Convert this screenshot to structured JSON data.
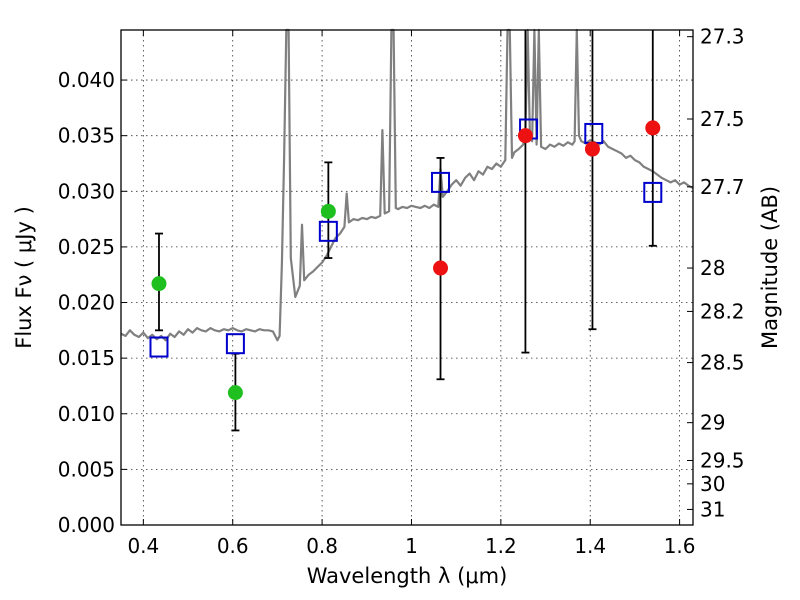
{
  "chart_data": {
    "type": "scatter",
    "xlabel": "Wavelength  λ (μm)",
    "ylabel": "Flux  Fν  ( μJy )",
    "y2label": "Magnitude (AB)",
    "xlim": [
      0.35,
      1.63
    ],
    "ylim": [
      0.0,
      0.0445
    ],
    "x_ticks": [
      0.4,
      0.6,
      0.8,
      1.0,
      1.2,
      1.4,
      1.6
    ],
    "x_tick_labels": [
      "0.4",
      "0.6",
      "0.8",
      "1",
      "1.2",
      "1.4",
      "1.6"
    ],
    "y_ticks": [
      0.0,
      0.005,
      0.01,
      0.015,
      0.02,
      0.025,
      0.03,
      0.035,
      0.04
    ],
    "y_tick_labels": [
      "0.000",
      "0.005",
      "0.010",
      "0.015",
      "0.020",
      "0.025",
      "0.030",
      "0.035",
      "0.040"
    ],
    "y2_ticks": [
      {
        "label": "27.3",
        "flux": 0.0439
      },
      {
        "label": "27.5",
        "flux": 0.0365
      },
      {
        "label": "27.7",
        "flux": 0.0304
      },
      {
        "label": "28",
        "flux": 0.0231
      },
      {
        "label": "28.2",
        "flux": 0.0192
      },
      {
        "label": "28.5",
        "flux": 0.0146
      },
      {
        "label": "29",
        "flux": 0.0092
      },
      {
        "label": "29.5",
        "flux": 0.0058
      },
      {
        "label": "30",
        "flux": 0.0037
      },
      {
        "label": "31",
        "flux": 0.0014
      }
    ],
    "grid": true,
    "colors": {
      "spectrum": "#808080",
      "green_points": "#1fbf1f",
      "red_points": "#ee1111",
      "model_boxes": "#0000cc",
      "error_bars": "#000000"
    },
    "series": [
      {
        "kind": "line",
        "points": [
          [
            0.35,
            0.0172
          ],
          [
            0.36,
            0.017
          ],
          [
            0.37,
            0.0175
          ],
          [
            0.38,
            0.0171
          ],
          [
            0.39,
            0.0169
          ],
          [
            0.4,
            0.0173
          ],
          [
            0.41,
            0.0168
          ],
          [
            0.42,
            0.0171
          ],
          [
            0.43,
            0.0167
          ],
          [
            0.44,
            0.017
          ],
          [
            0.45,
            0.0166
          ],
          [
            0.46,
            0.0172
          ],
          [
            0.47,
            0.0169
          ],
          [
            0.48,
            0.0174
          ],
          [
            0.49,
            0.0171
          ],
          [
            0.5,
            0.0176
          ],
          [
            0.51,
            0.0173
          ],
          [
            0.52,
            0.0177
          ],
          [
            0.53,
            0.0175
          ],
          [
            0.54,
            0.0174
          ],
          [
            0.55,
            0.0177
          ],
          [
            0.56,
            0.0175
          ],
          [
            0.57,
            0.0174
          ],
          [
            0.58,
            0.0176
          ],
          [
            0.59,
            0.0175
          ],
          [
            0.6,
            0.0177
          ],
          [
            0.61,
            0.0175
          ],
          [
            0.62,
            0.0174
          ],
          [
            0.63,
            0.0176
          ],
          [
            0.64,
            0.0175
          ],
          [
            0.65,
            0.0174
          ],
          [
            0.66,
            0.0176
          ],
          [
            0.67,
            0.0175
          ],
          [
            0.68,
            0.0175
          ],
          [
            0.69,
            0.0174
          ],
          [
            0.7,
            0.0166
          ],
          [
            0.705,
            0.017
          ],
          [
            0.71,
            0.0235
          ],
          [
            0.715,
            0.033
          ],
          [
            0.72,
            0.0445
          ],
          [
            0.725,
            0.0445
          ],
          [
            0.73,
            0.024
          ],
          [
            0.74,
            0.0205
          ],
          [
            0.75,
            0.0215
          ],
          [
            0.755,
            0.027
          ],
          [
            0.76,
            0.022
          ],
          [
            0.77,
            0.0225
          ],
          [
            0.78,
            0.0228
          ],
          [
            0.79,
            0.0232
          ],
          [
            0.8,
            0.0236
          ],
          [
            0.81,
            0.0242
          ],
          [
            0.82,
            0.025
          ],
          [
            0.83,
            0.0258
          ],
          [
            0.84,
            0.0262
          ],
          [
            0.85,
            0.0268
          ],
          [
            0.855,
            0.0298
          ],
          [
            0.86,
            0.0272
          ],
          [
            0.87,
            0.0275
          ],
          [
            0.88,
            0.0274
          ],
          [
            0.89,
            0.0276
          ],
          [
            0.9,
            0.0275
          ],
          [
            0.91,
            0.0277
          ],
          [
            0.92,
            0.0276
          ],
          [
            0.93,
            0.0278
          ],
          [
            0.935,
            0.0355
          ],
          [
            0.94,
            0.028
          ],
          [
            0.95,
            0.0282
          ],
          [
            0.955,
            0.0445
          ],
          [
            0.96,
            0.0445
          ],
          [
            0.965,
            0.0285
          ],
          [
            0.97,
            0.0284
          ],
          [
            0.98,
            0.0286
          ],
          [
            0.99,
            0.0285
          ],
          [
            1.0,
            0.0287
          ],
          [
            1.01,
            0.0286
          ],
          [
            1.02,
            0.0285
          ],
          [
            1.03,
            0.0287
          ],
          [
            1.04,
            0.0285
          ],
          [
            1.05,
            0.0288
          ],
          [
            1.06,
            0.0286
          ],
          [
            1.065,
            0.032
          ],
          [
            1.07,
            0.0295
          ],
          [
            1.08,
            0.03
          ],
          [
            1.09,
            0.0306
          ],
          [
            1.1,
            0.031
          ],
          [
            1.11,
            0.0305
          ],
          [
            1.12,
            0.0312
          ],
          [
            1.13,
            0.0316
          ],
          [
            1.14,
            0.031
          ],
          [
            1.15,
            0.0318
          ],
          [
            1.16,
            0.0315
          ],
          [
            1.17,
            0.0322
          ],
          [
            1.18,
            0.032
          ],
          [
            1.19,
            0.0325
          ],
          [
            1.2,
            0.0322
          ],
          [
            1.21,
            0.0328
          ],
          [
            1.215,
            0.0445
          ],
          [
            1.22,
            0.0445
          ],
          [
            1.225,
            0.033
          ],
          [
            1.23,
            0.0335
          ],
          [
            1.24,
            0.0338
          ],
          [
            1.25,
            0.0342
          ],
          [
            1.255,
            0.0352
          ],
          [
            1.26,
            0.0445
          ],
          [
            1.265,
            0.035
          ],
          [
            1.27,
            0.0345
          ],
          [
            1.275,
            0.0445
          ],
          [
            1.28,
            0.0342
          ],
          [
            1.285,
            0.0445
          ],
          [
            1.29,
            0.034
          ],
          [
            1.3,
            0.0338
          ],
          [
            1.31,
            0.0342
          ],
          [
            1.32,
            0.034
          ],
          [
            1.33,
            0.0343
          ],
          [
            1.34,
            0.0341
          ],
          [
            1.35,
            0.0344
          ],
          [
            1.36,
            0.0342
          ],
          [
            1.365,
            0.0345
          ],
          [
            1.37,
            0.0445
          ],
          [
            1.375,
            0.035
          ],
          [
            1.38,
            0.0345
          ],
          [
            1.39,
            0.0343
          ],
          [
            1.4,
            0.0346
          ],
          [
            1.41,
            0.0344
          ],
          [
            1.42,
            0.0342
          ],
          [
            1.43,
            0.0345
          ],
          [
            1.44,
            0.034
          ],
          [
            1.45,
            0.0338
          ],
          [
            1.46,
            0.0336
          ],
          [
            1.47,
            0.0334
          ],
          [
            1.48,
            0.033
          ],
          [
            1.49,
            0.0332
          ],
          [
            1.5,
            0.0328
          ],
          [
            1.51,
            0.0326
          ],
          [
            1.52,
            0.0322
          ],
          [
            1.53,
            0.032
          ],
          [
            1.54,
            0.0318
          ],
          [
            1.55,
            0.0315
          ],
          [
            1.56,
            0.0312
          ],
          [
            1.57,
            0.031
          ],
          [
            1.58,
            0.0308
          ],
          [
            1.59,
            0.031
          ],
          [
            1.6,
            0.0306
          ],
          [
            1.61,
            0.0308
          ],
          [
            1.62,
            0.0305
          ],
          [
            1.63,
            0.0303
          ]
        ]
      },
      {
        "kind": "points-green",
        "points": [
          {
            "x": 0.435,
            "y": 0.0217,
            "yerr": [
              0.0175,
              0.0262
            ]
          },
          {
            "x": 0.606,
            "y": 0.0119,
            "yerr": [
              0.0085,
              0.0154
            ]
          },
          {
            "x": 0.814,
            "y": 0.0282,
            "yerr": [
              0.024,
              0.0326
            ]
          }
        ]
      },
      {
        "kind": "points-red",
        "points": [
          {
            "x": 1.065,
            "y": 0.0231,
            "yerr": [
              0.0131,
              0.033
            ]
          },
          {
            "x": 1.255,
            "y": 0.035,
            "yerr": [
              0.0155,
              0.0445
            ]
          },
          {
            "x": 1.405,
            "y": 0.0338,
            "yerr": [
              0.0176,
              0.0445
            ]
          },
          {
            "x": 1.54,
            "y": 0.0357,
            "yerr": [
              0.0251,
              0.0445
            ]
          }
        ]
      },
      {
        "kind": "boxes",
        "points": [
          {
            "x": 0.435,
            "y": 0.016
          },
          {
            "x": 0.606,
            "y": 0.0163
          },
          {
            "x": 0.814,
            "y": 0.0264
          },
          {
            "x": 1.065,
            "y": 0.0308
          },
          {
            "x": 1.262,
            "y": 0.0356
          },
          {
            "x": 1.408,
            "y": 0.0352
          },
          {
            "x": 1.54,
            "y": 0.0299
          }
        ]
      }
    ]
  }
}
